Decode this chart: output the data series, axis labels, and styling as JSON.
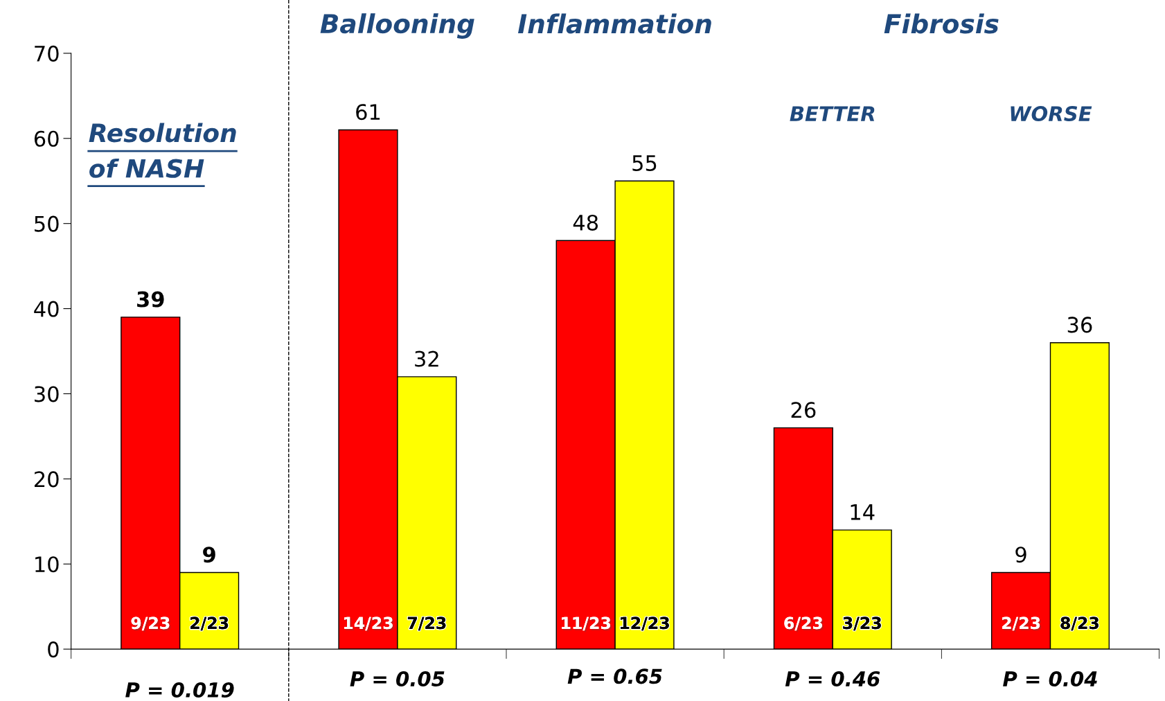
{
  "chart_data": {
    "type": "bar",
    "categories": [
      null,
      null,
      null,
      null,
      null
    ],
    "series": [
      {
        "color": "#ff0000",
        "values": [
          39,
          61,
          48,
          26,
          9
        ]
      },
      {
        "color": "#ffff00",
        "values": [
          9,
          32,
          55,
          14,
          36
        ]
      }
    ],
    "ylim": [
      0,
      70
    ],
    "yticks": [
      0,
      10,
      20,
      30,
      40,
      50,
      60,
      70
    ],
    "data_labels": true,
    "grid": false,
    "legend": false,
    "annotations": [
      "Resolution of NASH",
      "Ballooning",
      "Inflammation",
      "Fibrosis",
      "BETTER",
      "WORSE",
      "9/23",
      "2/23",
      "14/23",
      "7/23",
      "11/23",
      "12/23",
      "6/23",
      "3/23",
      "2/23",
      "8/23",
      "P = 0.019",
      "P = 0.05",
      "P = 0.65",
      "P = 0.46",
      "P = 0.04"
    ]
  }
}
